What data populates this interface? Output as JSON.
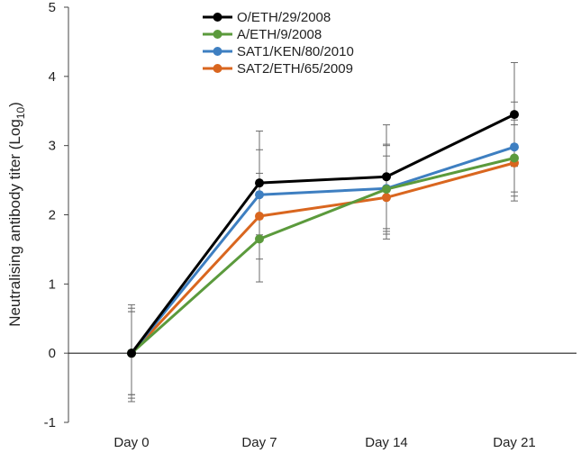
{
  "chart_data": {
    "type": "line",
    "title": "",
    "xlabel": "",
    "ylabel": "Neutralising antibody titer (Log",
    "ylabel_subscript": "10",
    "ylabel_suffix": ")",
    "categories": [
      "Day 0",
      "Day 7",
      "Day 14",
      "Day 21"
    ],
    "ylim": [
      -1,
      5
    ],
    "yticks": [
      -1,
      0,
      1,
      2,
      3,
      4,
      5
    ],
    "grid": false,
    "legend_position": "top",
    "series": [
      {
        "name": "O/ETH/29/2008",
        "color": "#000000",
        "values": [
          0,
          2.46,
          2.55,
          3.45
        ],
        "err": [
          0.7,
          0.75,
          0.75,
          0.75
        ]
      },
      {
        "name": "A/ETH/9/2008",
        "color": "#5b9a3c",
        "values": [
          0,
          1.65,
          2.37,
          2.82
        ],
        "err": [
          0.65,
          0.62,
          0.65,
          0.55
        ]
      },
      {
        "name": "SAT1/KEN/80/2010",
        "color": "#3e7fc1",
        "values": [
          0,
          2.29,
          2.38,
          2.98
        ],
        "err": [
          0.6,
          0.65,
          0.62,
          0.65
        ]
      },
      {
        "name": "SAT2/ETH/65/2009",
        "color": "#d9661f",
        "values": [
          0,
          1.98,
          2.25,
          2.75
        ],
        "err": [
          0.6,
          0.62,
          0.6,
          0.55
        ]
      }
    ]
  }
}
